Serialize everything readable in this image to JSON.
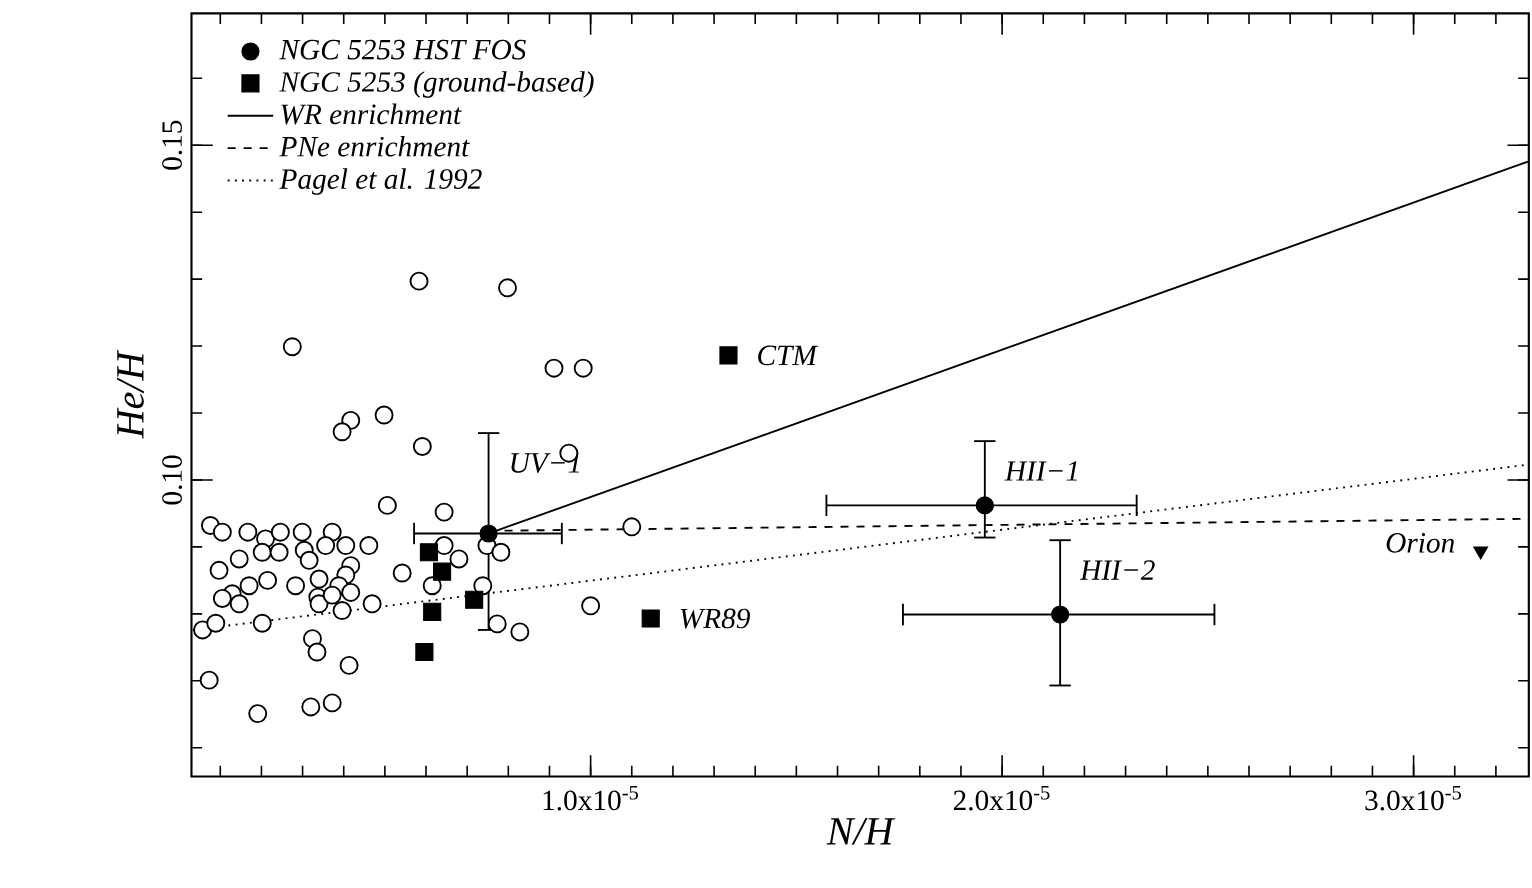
{
  "chart_data": {
    "type": "scatter",
    "xlabel": "N/H",
    "ylabel": "He/H",
    "xlim": [
      3e-07,
      3.28e-05
    ],
    "ylim": [
      0.0557,
      0.1697
    ],
    "xticks": [
      {
        "value": 1e-05,
        "label": "1.0x10$^{-5}$"
      },
      {
        "value": 2e-05,
        "label": "2.0x10$^{-5}$"
      },
      {
        "value": 3e-05,
        "label": "3.0x10$^{-5}$"
      }
    ],
    "yticks": [
      {
        "value": 0.1,
        "label": "0.10"
      },
      {
        "value": 0.15,
        "label": "0.15"
      }
    ],
    "legend": "top left",
    "series": [
      {
        "type": "scatter",
        "marker": "circle",
        "color": "#000000",
        "x": [
          5.83e-06,
          7.98e-06,
          2.75e-06,
          9.11e-06,
          9.82e-06,
          4.17e-06,
          4.98e-06,
          3.96e-06,
          5.91e-06,
          9.47e-06,
          5.06e-06,
          6.44e-06,
          1.1e-05,
          7.6e-07,
          1.05e-06,
          1.67e-06,
          2.1e-06,
          2.46e-06,
          2.99e-06,
          3.72e-06,
          3.04e-06,
          3.16e-06,
          3.56e-06,
          4.05e-06,
          4.61e-06,
          1.46e-06,
          9.7e-07,
          2.02e-06,
          2.43e-06,
          4.17e-06,
          4.05e-06,
          1.7e-06,
          2.15e-06,
          2.83e-06,
          3.4e-06,
          3.88e-06,
          1.29e-06,
          1.05e-06,
          1.46e-06,
          3.37e-06,
          3.4e-06,
          3.72e-06,
          4.17e-06,
          3.96e-06,
          4.69e-06,
          5.42e-06,
          6.44e-06,
          6.8e-06,
          7.48e-06,
          7.82e-06,
          6.15e-06,
          7.38e-06,
          1e-05,
          5.7e-07,
          8.9e-07,
          2.02e-06,
          7.73e-06,
          8.28e-06,
          3.24e-06,
          3.35e-06,
          4.13e-06,
          7.3e-07,
          1.91e-06,
          3.2e-06,
          3.72e-06
        ],
        "values": [
          0.1297,
          0.1287,
          0.1199,
          0.1167,
          0.1167,
          0.1089,
          0.1097,
          0.1072,
          0.105,
          0.104,
          0.0962,
          0.0952,
          0.093,
          0.0932,
          0.0922,
          0.0922,
          0.0912,
          0.0922,
          0.0922,
          0.0922,
          0.0895,
          0.088,
          0.0902,
          0.0902,
          0.0902,
          0.0882,
          0.0865,
          0.0892,
          0.0892,
          0.0872,
          0.0858,
          0.0842,
          0.085,
          0.0842,
          0.0852,
          0.0842,
          0.083,
          0.0823,
          0.0815,
          0.0825,
          0.0815,
          0.0828,
          0.0832,
          0.0805,
          0.0815,
          0.0861,
          0.0902,
          0.0882,
          0.0902,
          0.0892,
          0.0842,
          0.0842,
          0.0812,
          0.0776,
          0.0786,
          0.0786,
          0.0785,
          0.0773,
          0.0763,
          0.0743,
          0.0723,
          0.0701,
          0.0651,
          0.0661,
          0.0667
        ]
      },
      {
        "type": "scatter",
        "name": "NGC 5253 HST FOS",
        "marker": "circle",
        "color": "#000000",
        "x": [
          7.52e-06,
          1.958e-05,
          2.141e-05
        ],
        "values": [
          0.092,
          0.0962,
          0.0799
        ],
        "errors": [
          [
            0.0776,
            0.107
          ],
          [
            0.0914,
            0.1058
          ],
          [
            0.0693,
            0.091
          ]
        ],
        "xerrors": [
          [
            5.71e-06,
            9.3e-06
          ],
          [
            1.573e-05,
            2.327e-05
          ],
          [
            1.759e-05,
            2.516e-05
          ]
        ]
      },
      {
        "type": "scatter",
        "name": "NGC 5253 (ground-based)",
        "marker": "square",
        "color": "#000000",
        "x": [
          1.335e-05,
          1.146e-05,
          6.07e-06,
          6.39e-06,
          6.15e-06,
          7.17e-06,
          5.96e-06
        ],
        "values": [
          0.1186,
          0.0793,
          0.0892,
          0.0863,
          0.0803,
          0.0821,
          0.0743
        ]
      },
      {
        "type": "line",
        "name": "WR enrichment",
        "line_style": "solid",
        "color": "#000000",
        "x": [
          7.52e-06,
          3.28e-05
        ],
        "values": [
          0.092,
          0.1476
        ]
      },
      {
        "type": "line",
        "name": "PNe enrichment",
        "line_style": "dashed",
        "color": "#000000",
        "x": [
          7.52e-06,
          3.28e-05
        ],
        "values": [
          0.0924,
          0.0942
        ]
      },
      {
        "type": "line",
        "name": "Pagel et al. 1992",
        "line_style": "dotted",
        "color": "#000000",
        "x": [
          3.3e-07,
          3.28e-05
        ],
        "values": [
          0.0776,
          0.1023
        ]
      },
      {
        "type": "scatter",
        "marker": "triangle",
        "color": "#000000",
        "x": [
          3.163e-05
        ],
        "values": [
          0.0894
        ]
      }
    ],
    "annotations": [
      {
        "text": "UV−1",
        "x": 7.52e-06,
        "y": 0.092
      },
      {
        "text": "CTM",
        "x": 1.335e-05,
        "y": 0.1186
      },
      {
        "text": "WR89",
        "x": 1.146e-05,
        "y": 0.0793
      },
      {
        "text": "HII−1",
        "x": 1.958e-05,
        "y": 0.0962
      },
      {
        "text": "HII−2",
        "x": 2.141e-05,
        "y": 0.0799
      },
      {
        "text": "Orion",
        "x": 3.163e-05,
        "y": 0.0894
      }
    ]
  }
}
